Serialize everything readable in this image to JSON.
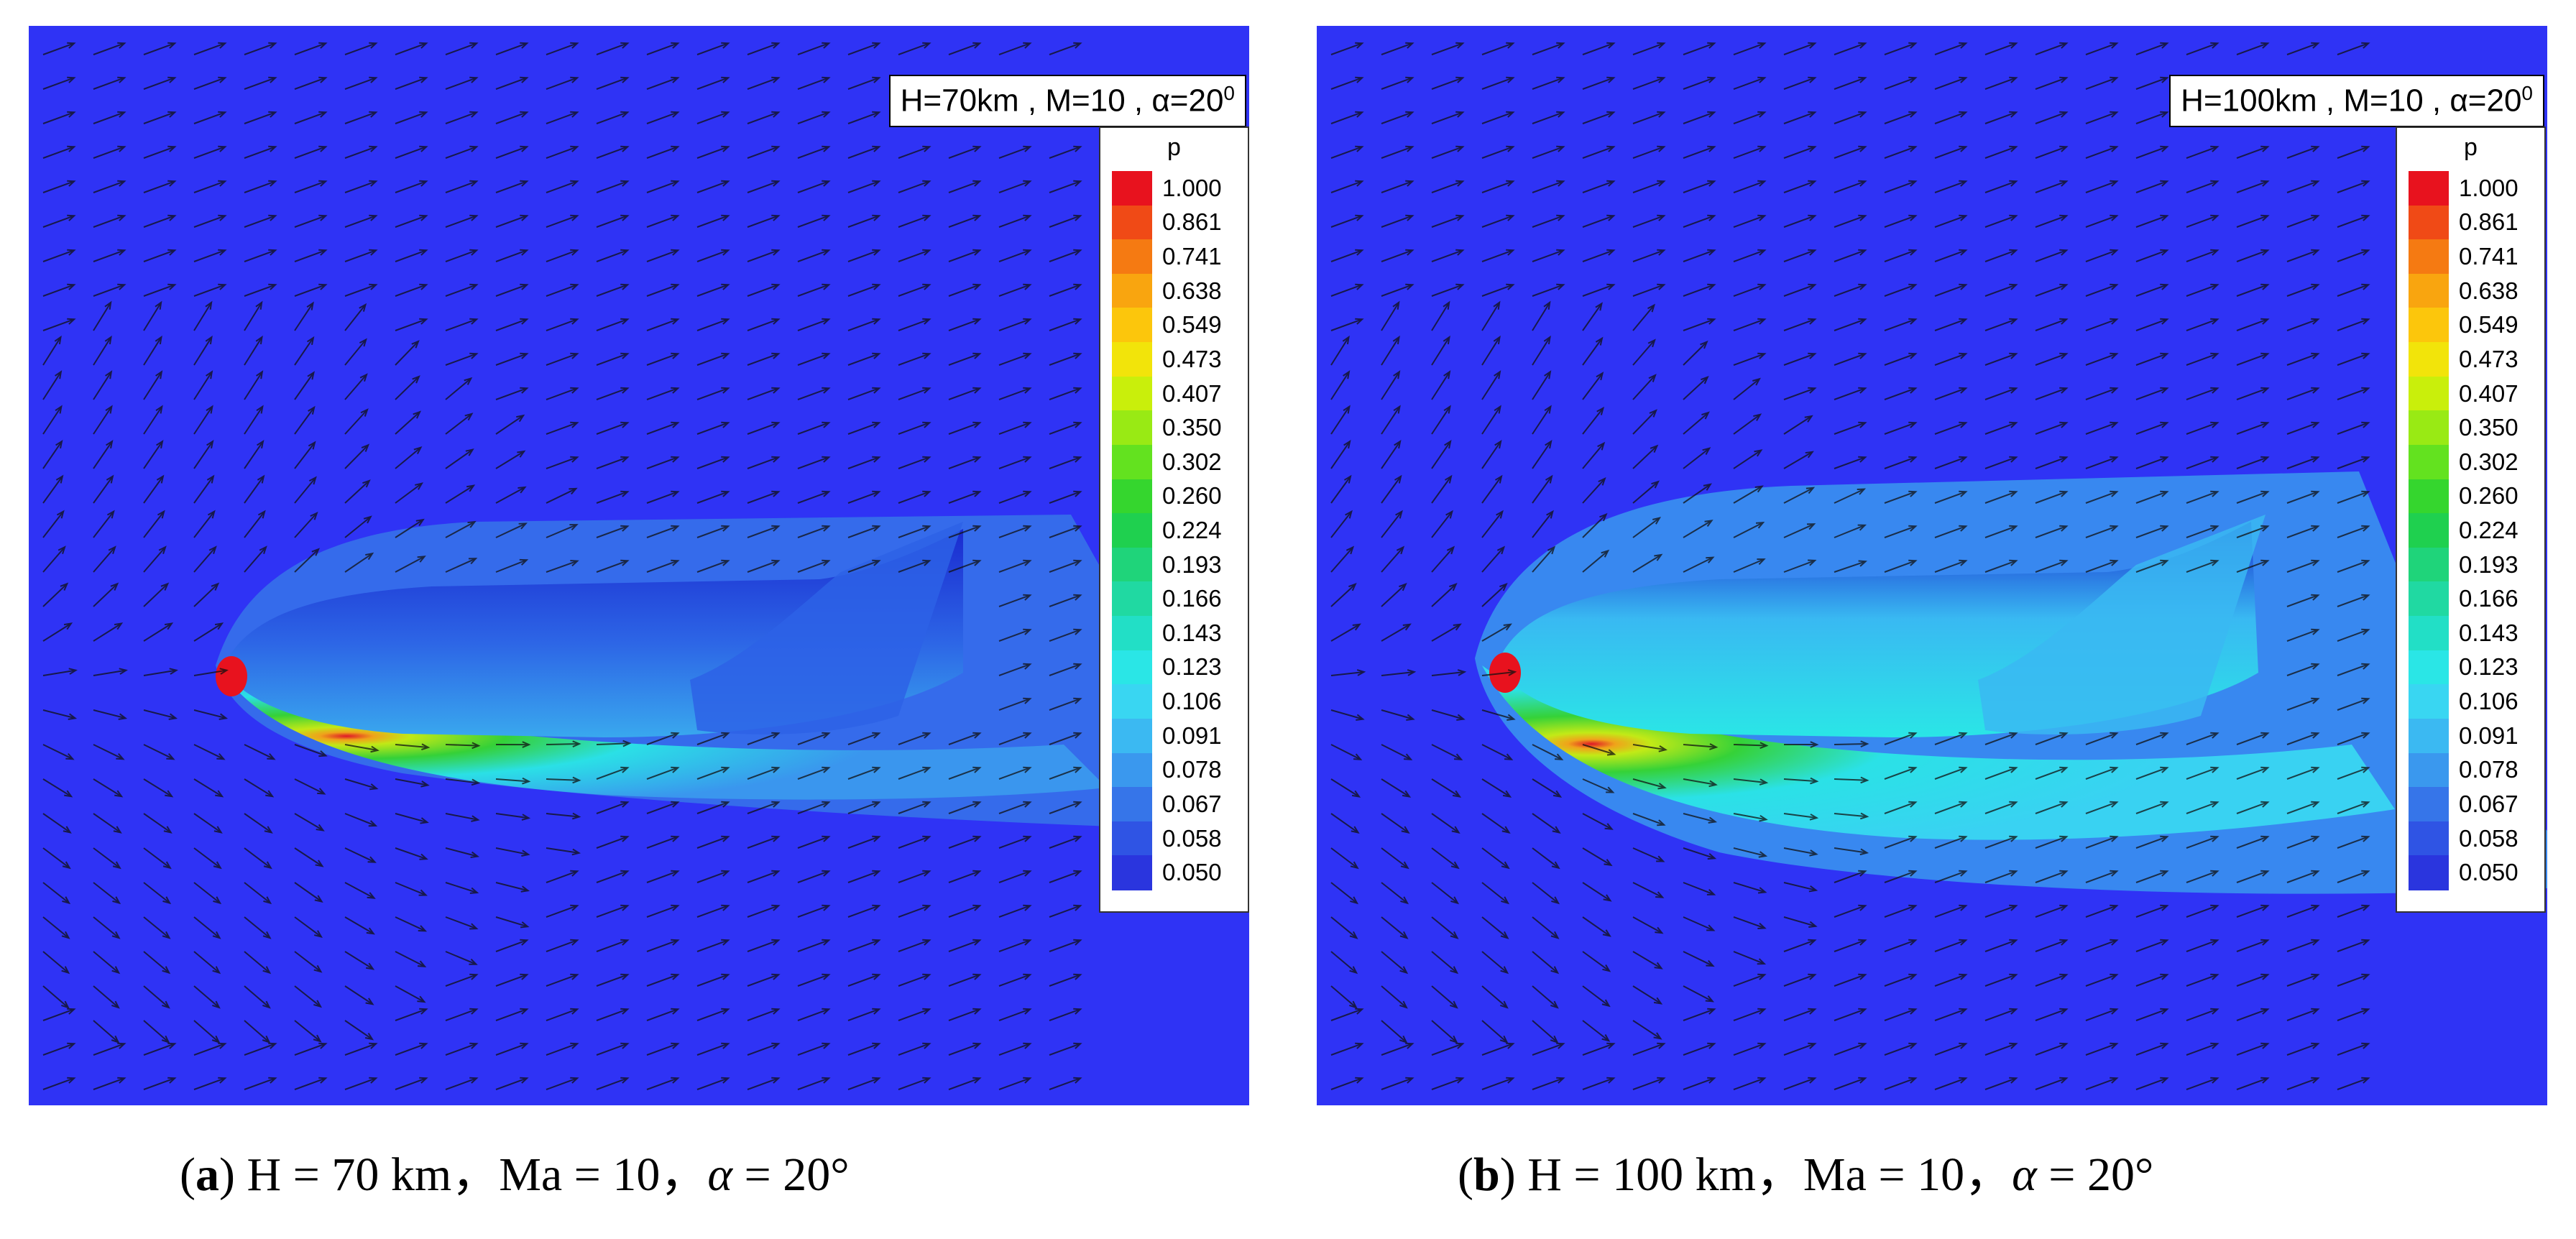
{
  "panels": [
    {
      "id": "a",
      "condition": {
        "prefix": "H=70km , M=10 , ",
        "alpha_sym": "α",
        "alpha_val": "=20",
        "sup": "0"
      },
      "legend_title": "p",
      "caption": {
        "open": "(",
        "letter": "a",
        "close": ")",
        "text1": " H = 70 km，Ma = 10，",
        "alpha_sym": "α",
        "text2": " = 20°"
      }
    },
    {
      "id": "b",
      "condition": {
        "prefix": "H=100km , M=10 , ",
        "alpha_sym": "α",
        "alpha_val": "=20",
        "sup": "0"
      },
      "legend_title": "p",
      "caption": {
        "open": "(",
        "letter": "b",
        "close": ")",
        "text1": " H = 100 km，Ma = 10，",
        "alpha_sym": "α",
        "text2": " = 20°"
      }
    }
  ],
  "legend_levels": [
    "1.000",
    "0.861",
    "0.741",
    "0.638",
    "0.549",
    "0.473",
    "0.407",
    "0.350",
    "0.302",
    "0.260",
    "0.224",
    "0.193",
    "0.166",
    "0.143",
    "0.123",
    "0.106",
    "0.091",
    "0.078",
    "0.067",
    "0.058",
    "0.050"
  ],
  "legend_colors": [
    "#e8121e",
    "#f04a16",
    "#f57a12",
    "#f9a50f",
    "#fcc60c",
    "#f2e40a",
    "#c9ef0b",
    "#99ea14",
    "#63e21f",
    "#35d62e",
    "#1fd04f",
    "#1fd47a",
    "#20d9a2",
    "#22dfc6",
    "#2ae6e6",
    "#39d6f2",
    "#3bb9f2",
    "#3a98ee",
    "#3675e9",
    "#2f54e4",
    "#2a35de"
  ]
}
